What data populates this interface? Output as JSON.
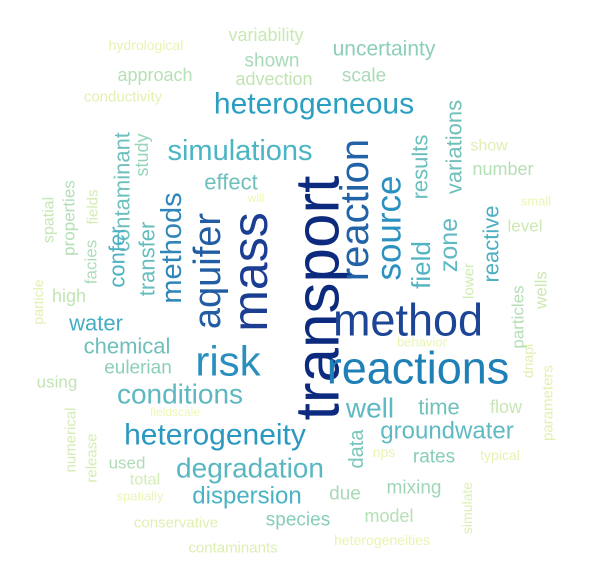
{
  "words": [
    {
      "text": "transport",
      "weight": 1.0
    },
    {
      "text": "mass",
      "weight": 0.86
    },
    {
      "text": "reactions",
      "weight": 0.85
    },
    {
      "text": "method",
      "weight": 0.84
    },
    {
      "text": "reaction",
      "weight": 0.8
    },
    {
      "text": "risk",
      "weight": 0.76
    },
    {
      "text": "aquifer",
      "weight": 0.72
    },
    {
      "text": "source",
      "weight": 0.7
    },
    {
      "text": "heterogeneous",
      "weight": 0.62
    },
    {
      "text": "heterogeneity",
      "weight": 0.6
    },
    {
      "text": "simulations",
      "weight": 0.58
    },
    {
      "text": "methods",
      "weight": 0.56
    },
    {
      "text": "degradation",
      "weight": 0.54
    },
    {
      "text": "conditions",
      "weight": 0.53
    },
    {
      "text": "well",
      "weight": 0.52
    },
    {
      "text": "groundwater",
      "weight": 0.5
    },
    {
      "text": "field",
      "weight": 0.48
    },
    {
      "text": "zone",
      "weight": 0.47
    },
    {
      "text": "dispersion",
      "weight": 0.46
    },
    {
      "text": "contaminant",
      "weight": 0.45
    },
    {
      "text": "results",
      "weight": 0.44
    },
    {
      "text": "chemical",
      "weight": 0.44
    },
    {
      "text": "water",
      "weight": 0.43
    },
    {
      "text": "confer",
      "weight": 0.43
    },
    {
      "text": "transfer",
      "weight": 0.42
    },
    {
      "text": "reactive",
      "weight": 0.42
    },
    {
      "text": "time",
      "weight": 0.42
    },
    {
      "text": "variations",
      "weight": 0.41
    },
    {
      "text": "effect",
      "weight": 0.41
    },
    {
      "text": "uncertainty",
      "weight": 0.4
    },
    {
      "text": "data",
      "weight": 0.4
    },
    {
      "text": "eulerian",
      "weight": 0.39
    },
    {
      "text": "rates",
      "weight": 0.39
    },
    {
      "text": "species",
      "weight": 0.38
    },
    {
      "text": "mixing",
      "weight": 0.38
    },
    {
      "text": "shown",
      "weight": 0.37
    },
    {
      "text": "scale",
      "weight": 0.36
    },
    {
      "text": "due",
      "weight": 0.36
    },
    {
      "text": "study",
      "weight": 0.35
    },
    {
      "text": "number",
      "weight": 0.34
    },
    {
      "text": "variability",
      "weight": 0.33
    },
    {
      "text": "approach",
      "weight": 0.33
    },
    {
      "text": "advection",
      "weight": 0.33
    },
    {
      "text": "model",
      "weight": 0.33
    },
    {
      "text": "high",
      "weight": 0.32
    },
    {
      "text": "flow",
      "weight": 0.32
    },
    {
      "text": "facies",
      "weight": 0.31
    },
    {
      "text": "properties",
      "weight": 0.31
    },
    {
      "text": "particles",
      "weight": 0.31
    },
    {
      "text": "used",
      "weight": 0.31
    },
    {
      "text": "using",
      "weight": 0.3
    },
    {
      "text": "level",
      "weight": 0.3
    },
    {
      "text": "wells",
      "weight": 0.29
    },
    {
      "text": "spatial",
      "weight": 0.28
    },
    {
      "text": "fields",
      "weight": 0.28
    },
    {
      "text": "lower",
      "weight": 0.27
    },
    {
      "text": "show",
      "weight": 0.27
    },
    {
      "text": "total",
      "weight": 0.27
    },
    {
      "text": "numerical",
      "weight": 0.26
    },
    {
      "text": "release",
      "weight": 0.26
    },
    {
      "text": "conductivity",
      "weight": 0.25
    },
    {
      "text": "contaminants",
      "weight": 0.25
    },
    {
      "text": "conservative",
      "weight": 0.25
    },
    {
      "text": "parameters",
      "weight": 0.25
    },
    {
      "text": "simulate",
      "weight": 0.24
    },
    {
      "text": "dnapl",
      "weight": 0.24
    },
    {
      "text": "particle",
      "weight": 0.24
    },
    {
      "text": "hydrological",
      "weight": 0.23
    },
    {
      "text": "heterogeneities",
      "weight": 0.23
    },
    {
      "text": "typical",
      "weight": 0.22
    },
    {
      "text": "behavior",
      "weight": 0.22
    },
    {
      "text": "nps",
      "weight": 0.22
    },
    {
      "text": "spatially",
      "weight": 0.21
    },
    {
      "text": "small",
      "weight": 0.21
    },
    {
      "text": "fieldscale",
      "weight": 0.2
    },
    {
      "text": "will",
      "weight": 0.19
    }
  ]
}
